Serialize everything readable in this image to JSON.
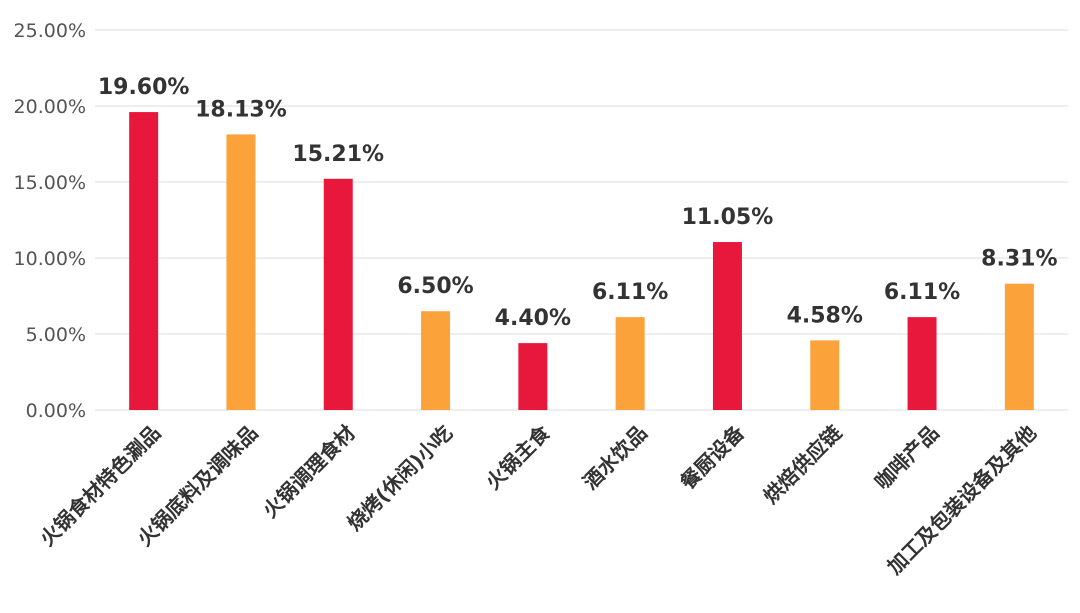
{
  "chart_data": {
    "type": "bar",
    "title": "",
    "xlabel": "",
    "ylabel": "",
    "ylim": [
      0,
      25
    ],
    "y_ticks": [
      0,
      5,
      10,
      15,
      20,
      25
    ],
    "y_tick_labels": [
      "0.00%",
      "5.00%",
      "10.00%",
      "15.00%",
      "20.00%",
      "25.00%"
    ],
    "grid": true,
    "legend": "none",
    "categories": [
      "火锅食材特色涮品",
      "火锅底料及调味品",
      "火锅调理食材",
      "烧烤(休闲)小吃",
      "火锅主食",
      "酒水饮品",
      "餐厨设备",
      "烘焙供应链",
      "咖啡产品",
      "加工及包装设备及其他"
    ],
    "values": [
      19.6,
      18.13,
      15.21,
      6.5,
      4.4,
      6.11,
      11.05,
      4.58,
      6.11,
      8.31
    ],
    "value_labels": [
      "19.60%",
      "18.13%",
      "15.21%",
      "6.50%",
      "4.40%",
      "6.11%",
      "11.05%",
      "4.58%",
      "6.11%",
      "8.31%"
    ],
    "bar_colors": [
      "#e8173c",
      "#fba33a",
      "#e8173c",
      "#fba33a",
      "#e8173c",
      "#fba33a",
      "#e8173c",
      "#fba33a",
      "#e8173c",
      "#fba33a"
    ]
  }
}
